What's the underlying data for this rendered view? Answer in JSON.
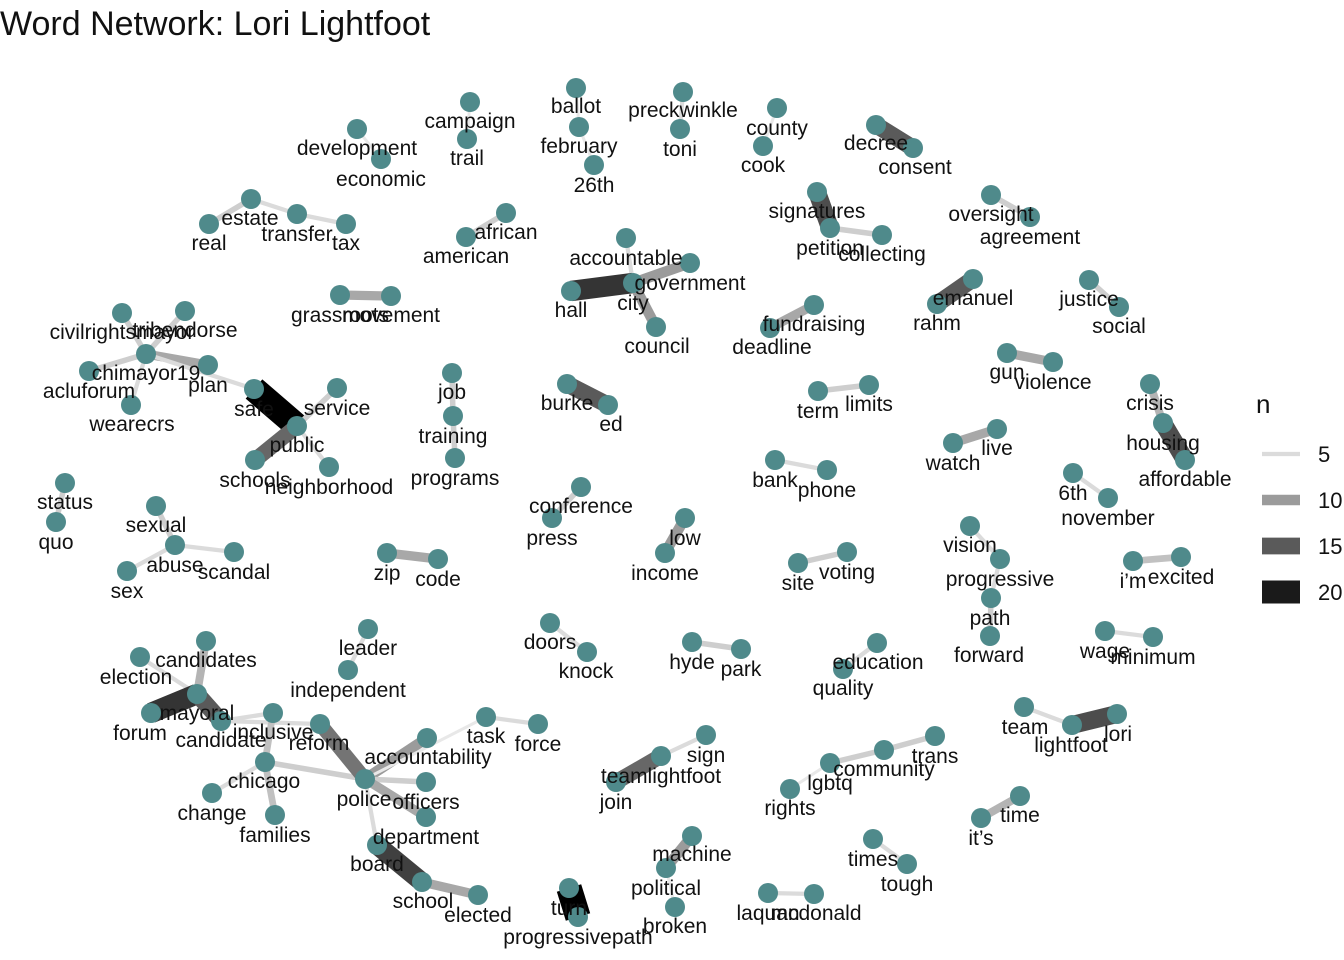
{
  "title": "Word Network: Lori Lightfoot",
  "colors": {
    "node": "#4f8a8b",
    "edge_light": "#e6e6e6",
    "edge_dark": "#000000"
  },
  "legend": {
    "title": "n",
    "items": [
      {
        "label": "5",
        "value": 5
      },
      {
        "label": "10",
        "value": 10
      },
      {
        "label": "15",
        "value": 15
      },
      {
        "label": "20",
        "value": 20
      }
    ]
  },
  "nodes": [
    {
      "id": "development",
      "label": "development"
    },
    {
      "id": "economic",
      "label": "economic"
    },
    {
      "id": "campaign",
      "label": "campaign"
    },
    {
      "id": "trail",
      "label": "trail"
    },
    {
      "id": "ballot",
      "label": "ballot"
    },
    {
      "id": "february",
      "label": "february"
    },
    {
      "id": "26th",
      "label": "26th"
    },
    {
      "id": "preckwinkle",
      "label": "preckwinkle"
    },
    {
      "id": "toni",
      "label": "toni"
    },
    {
      "id": "county",
      "label": "county"
    },
    {
      "id": "cook",
      "label": "cook"
    },
    {
      "id": "decree",
      "label": "decree"
    },
    {
      "id": "consent",
      "label": "consent"
    },
    {
      "id": "estate",
      "label": "estate"
    },
    {
      "id": "real",
      "label": "real"
    },
    {
      "id": "transfer",
      "label": "transfer"
    },
    {
      "id": "tax",
      "label": "tax"
    },
    {
      "id": "african",
      "label": "african"
    },
    {
      "id": "american",
      "label": "american"
    },
    {
      "id": "accountable",
      "label": "accountable"
    },
    {
      "id": "government",
      "label": "government"
    },
    {
      "id": "hall",
      "label": "hall"
    },
    {
      "id": "city",
      "label": "city"
    },
    {
      "id": "council",
      "label": "council"
    },
    {
      "id": "signatures",
      "label": "signatures"
    },
    {
      "id": "petition",
      "label": "petition"
    },
    {
      "id": "collecting",
      "label": "collecting"
    },
    {
      "id": "oversight",
      "label": "oversight"
    },
    {
      "id": "agreement",
      "label": "agreement"
    },
    {
      "id": "grassroots",
      "label": "grassroots"
    },
    {
      "id": "movement",
      "label": "movement"
    },
    {
      "id": "fundraising",
      "label": "fundraising"
    },
    {
      "id": "deadline",
      "label": "deadline"
    },
    {
      "id": "emanuel",
      "label": "emanuel"
    },
    {
      "id": "rahm",
      "label": "rahm"
    },
    {
      "id": "justice",
      "label": "justice"
    },
    {
      "id": "social",
      "label": "social"
    },
    {
      "id": "civilrightsmayor",
      "label": "civilrightsmayor"
    },
    {
      "id": "tribendorse",
      "label": "tribendorse"
    },
    {
      "id": "chimayor19",
      "label": "chimayor19"
    },
    {
      "id": "aclu",
      "label": "acluforum"
    },
    {
      "id": "plan",
      "label": "plan"
    },
    {
      "id": "wearecrs",
      "label": "wearecrs"
    },
    {
      "id": "safe",
      "label": "safe"
    },
    {
      "id": "service",
      "label": "service"
    },
    {
      "id": "public",
      "label": "public"
    },
    {
      "id": "schools",
      "label": "schools"
    },
    {
      "id": "neighborhood",
      "label": "neighborhood"
    },
    {
      "id": "job",
      "label": "job"
    },
    {
      "id": "training",
      "label": "training"
    },
    {
      "id": "programs",
      "label": "programs"
    },
    {
      "id": "burke",
      "label": "burke"
    },
    {
      "id": "ed",
      "label": "ed"
    },
    {
      "id": "term",
      "label": "term"
    },
    {
      "id": "limits",
      "label": "limits"
    },
    {
      "id": "gun",
      "label": "gun"
    },
    {
      "id": "violence",
      "label": "violence"
    },
    {
      "id": "crisis",
      "label": "crisis"
    },
    {
      "id": "housing",
      "label": "housing"
    },
    {
      "id": "affordable",
      "label": "affordable"
    },
    {
      "id": "watch",
      "label": "watch"
    },
    {
      "id": "live",
      "label": "live"
    },
    {
      "id": "bank",
      "label": "bank"
    },
    {
      "id": "phone",
      "label": "phone"
    },
    {
      "id": "6th",
      "label": "6th"
    },
    {
      "id": "november",
      "label": "november"
    },
    {
      "id": "status",
      "label": "status"
    },
    {
      "id": "quo",
      "label": "quo"
    },
    {
      "id": "conference",
      "label": "conference"
    },
    {
      "id": "press",
      "label": "press"
    },
    {
      "id": "low",
      "label": "low"
    },
    {
      "id": "income",
      "label": "income"
    },
    {
      "id": "sexual",
      "label": "sexual"
    },
    {
      "id": "abuse",
      "label": "abuse"
    },
    {
      "id": "scandal",
      "label": "scandal"
    },
    {
      "id": "sex",
      "label": "sex"
    },
    {
      "id": "zip",
      "label": "zip"
    },
    {
      "id": "code",
      "label": "code"
    },
    {
      "id": "site",
      "label": "site"
    },
    {
      "id": "voting",
      "label": "voting"
    },
    {
      "id": "vision",
      "label": "vision"
    },
    {
      "id": "progressive",
      "label": "progressive"
    },
    {
      "id": "path",
      "label": "path"
    },
    {
      "id": "forward",
      "label": "forward"
    },
    {
      "id": "im",
      "label": "i’m"
    },
    {
      "id": "excited",
      "label": "excited"
    },
    {
      "id": "leader",
      "label": "leader"
    },
    {
      "id": "independent",
      "label": "independent"
    },
    {
      "id": "candidates",
      "label": "candidates"
    },
    {
      "id": "election",
      "label": "election"
    },
    {
      "id": "mayoral",
      "label": "mayoral"
    },
    {
      "id": "forum",
      "label": "forum"
    },
    {
      "id": "candidate",
      "label": "candidate"
    },
    {
      "id": "inclusive",
      "label": "inclusive"
    },
    {
      "id": "reform",
      "label": "reform"
    },
    {
      "id": "chicago",
      "label": "chicago"
    },
    {
      "id": "change",
      "label": "change"
    },
    {
      "id": "families",
      "label": "families"
    },
    {
      "id": "accountability",
      "label": "accountability"
    },
    {
      "id": "task",
      "label": "task"
    },
    {
      "id": "force",
      "label": "force"
    },
    {
      "id": "police",
      "label": "police"
    },
    {
      "id": "officers",
      "label": "officers"
    },
    {
      "id": "department",
      "label": "department"
    },
    {
      "id": "board",
      "label": "board"
    },
    {
      "id": "school",
      "label": "school"
    },
    {
      "id": "elected",
      "label": "elected"
    },
    {
      "id": "doors",
      "label": "doors"
    },
    {
      "id": "knock",
      "label": "knock"
    },
    {
      "id": "hyde",
      "label": "hyde"
    },
    {
      "id": "park",
      "label": "park"
    },
    {
      "id": "education",
      "label": "education"
    },
    {
      "id": "quality",
      "label": "quality"
    },
    {
      "id": "wage",
      "label": "wage"
    },
    {
      "id": "minimum",
      "label": "minimum"
    },
    {
      "id": "team",
      "label": "team"
    },
    {
      "id": "lightfoot",
      "label": "lightfoot"
    },
    {
      "id": "lori",
      "label": "lori"
    },
    {
      "id": "sign",
      "label": "sign"
    },
    {
      "id": "teamlightfoot",
      "label": "teamlightfoot"
    },
    {
      "id": "join",
      "label": "join"
    },
    {
      "id": "community",
      "label": "community"
    },
    {
      "id": "trans",
      "label": "trans"
    },
    {
      "id": "lgbtq",
      "label": "lgbtq"
    },
    {
      "id": "rights",
      "label": "rights"
    },
    {
      "id": "its",
      "label": "it’s"
    },
    {
      "id": "time",
      "label": "time"
    },
    {
      "id": "machine",
      "label": "machine"
    },
    {
      "id": "political",
      "label": "political"
    },
    {
      "id": "broken",
      "label": "broken"
    },
    {
      "id": "times",
      "label": "times"
    },
    {
      "id": "tough",
      "label": "tough"
    },
    {
      "id": "laquan",
      "label": "laquan"
    },
    {
      "id": "mcdonald",
      "label": "mcdonald"
    },
    {
      "id": "turn",
      "label": "turn"
    },
    {
      "id": "progressivepath",
      "label": "progressivepath"
    }
  ],
  "edges": [
    {
      "from": "development",
      "to": "economic",
      "n": 4
    },
    {
      "from": "campaign",
      "to": "trail",
      "n": 4
    },
    {
      "from": "ballot",
      "to": "february",
      "n": 4
    },
    {
      "from": "february",
      "to": "26th",
      "n": 4
    },
    {
      "from": "preckwinkle",
      "to": "toni",
      "n": 5
    },
    {
      "from": "county",
      "to": "cook",
      "n": 4
    },
    {
      "from": "decree",
      "to": "consent",
      "n": 15
    },
    {
      "from": "real",
      "to": "estate",
      "n": 6
    },
    {
      "from": "estate",
      "to": "transfer",
      "n": 5
    },
    {
      "from": "transfer",
      "to": "tax",
      "n": 5
    },
    {
      "from": "african",
      "to": "american",
      "n": 6
    },
    {
      "from": "accountable",
      "to": "city",
      "n": 5
    },
    {
      "from": "hall",
      "to": "city",
      "n": 18
    },
    {
      "from": "city",
      "to": "government",
      "n": 10
    },
    {
      "from": "city",
      "to": "council",
      "n": 10
    },
    {
      "from": "signatures",
      "to": "petition",
      "n": 16
    },
    {
      "from": "petition",
      "to": "collecting",
      "n": 6
    },
    {
      "from": "oversight",
      "to": "agreement",
      "n": 6
    },
    {
      "from": "grassroots",
      "to": "movement",
      "n": 9
    },
    {
      "from": "fundraising",
      "to": "deadline",
      "n": 9
    },
    {
      "from": "emanuel",
      "to": "rahm",
      "n": 15
    },
    {
      "from": "justice",
      "to": "social",
      "n": 6
    },
    {
      "from": "chimayor19",
      "to": "civilrightsmayor",
      "n": 6
    },
    {
      "from": "chimayor19",
      "to": "tribendorse",
      "n": 6
    },
    {
      "from": "chimayor19",
      "to": "aclu",
      "n": 6
    },
    {
      "from": "chimayor19",
      "to": "plan",
      "n": 9
    },
    {
      "from": "chimayor19",
      "to": "wearecrs",
      "n": 5
    },
    {
      "from": "chimayor19",
      "to": "safe",
      "n": 5
    },
    {
      "from": "safe",
      "to": "public",
      "n": 22
    },
    {
      "from": "public",
      "to": "service",
      "n": 6
    },
    {
      "from": "public",
      "to": "schools",
      "n": 14
    },
    {
      "from": "public",
      "to": "neighborhood",
      "n": 5
    },
    {
      "from": "job",
      "to": "training",
      "n": 6
    },
    {
      "from": "training",
      "to": "programs",
      "n": 6
    },
    {
      "from": "burke",
      "to": "ed",
      "n": 15
    },
    {
      "from": "term",
      "to": "limits",
      "n": 6
    },
    {
      "from": "gun",
      "to": "violence",
      "n": 9
    },
    {
      "from": "crisis",
      "to": "housing",
      "n": 8
    },
    {
      "from": "housing",
      "to": "affordable",
      "n": 16
    },
    {
      "from": "watch",
      "to": "live",
      "n": 9
    },
    {
      "from": "bank",
      "to": "phone",
      "n": 5
    },
    {
      "from": "6th",
      "to": "november",
      "n": 5
    },
    {
      "from": "status",
      "to": "quo",
      "n": 6
    },
    {
      "from": "conference",
      "to": "press",
      "n": 6
    },
    {
      "from": "low",
      "to": "income",
      "n": 10
    },
    {
      "from": "sexual",
      "to": "abuse",
      "n": 6
    },
    {
      "from": "abuse",
      "to": "scandal",
      "n": 5
    },
    {
      "from": "abuse",
      "to": "sex",
      "n": 5
    },
    {
      "from": "zip",
      "to": "code",
      "n": 9
    },
    {
      "from": "site",
      "to": "voting",
      "n": 6
    },
    {
      "from": "vision",
      "to": "progressive",
      "n": 5
    },
    {
      "from": "progressive",
      "to": "path",
      "n": 5
    },
    {
      "from": "path",
      "to": "forward",
      "n": 6
    },
    {
      "from": "im",
      "to": "excited",
      "n": 7
    },
    {
      "from": "leader",
      "to": "independent",
      "n": 5
    },
    {
      "from": "candidates",
      "to": "mayoral",
      "n": 8
    },
    {
      "from": "election",
      "to": "mayoral",
      "n": 5
    },
    {
      "from": "forum",
      "to": "mayoral",
      "n": 18
    },
    {
      "from": "mayoral",
      "to": "candidate",
      "n": 15
    },
    {
      "from": "candidate",
      "to": "inclusive",
      "n": 5
    },
    {
      "from": "candidate",
      "to": "reform",
      "n": 5
    },
    {
      "from": "inclusive",
      "to": "chicago",
      "n": 7
    },
    {
      "from": "chicago",
      "to": "change",
      "n": 5
    },
    {
      "from": "chicago",
      "to": "families",
      "n": 7
    },
    {
      "from": "chicago",
      "to": "police",
      "n": 6
    },
    {
      "from": "reform",
      "to": "police",
      "n": 13
    },
    {
      "from": "accountability",
      "to": "police",
      "n": 10
    },
    {
      "from": "task",
      "to": "force",
      "n": 5
    },
    {
      "from": "task",
      "to": "police",
      "n": 4
    },
    {
      "from": "police",
      "to": "officers",
      "n": 6
    },
    {
      "from": "police",
      "to": "department",
      "n": 9
    },
    {
      "from": "police",
      "to": "board",
      "n": 5
    },
    {
      "from": "board",
      "to": "school",
      "n": 17
    },
    {
      "from": "school",
      "to": "elected",
      "n": 9
    },
    {
      "from": "doors",
      "to": "knock",
      "n": 5
    },
    {
      "from": "hyde",
      "to": "park",
      "n": 6
    },
    {
      "from": "education",
      "to": "quality",
      "n": 5
    },
    {
      "from": "wage",
      "to": "minimum",
      "n": 5
    },
    {
      "from": "team",
      "to": "lightfoot",
      "n": 5
    },
    {
      "from": "lightfoot",
      "to": "lori",
      "n": 16
    },
    {
      "from": "sign",
      "to": "teamlightfoot",
      "n": 5
    },
    {
      "from": "teamlightfoot",
      "to": "join",
      "n": 14
    },
    {
      "from": "community",
      "to": "trans",
      "n": 6
    },
    {
      "from": "community",
      "to": "lgbtq",
      "n": 6
    },
    {
      "from": "rights",
      "to": "lgbtq",
      "n": 4
    },
    {
      "from": "its",
      "to": "time",
      "n": 8
    },
    {
      "from": "machine",
      "to": "political",
      "n": 10
    },
    {
      "from": "political",
      "to": "broken",
      "n": 4
    },
    {
      "from": "times",
      "to": "tough",
      "n": 5
    },
    {
      "from": "laquan",
      "to": "mcdonald",
      "n": 5
    },
    {
      "from": "turn",
      "to": "progressivepath",
      "n": 22
    }
  ]
}
